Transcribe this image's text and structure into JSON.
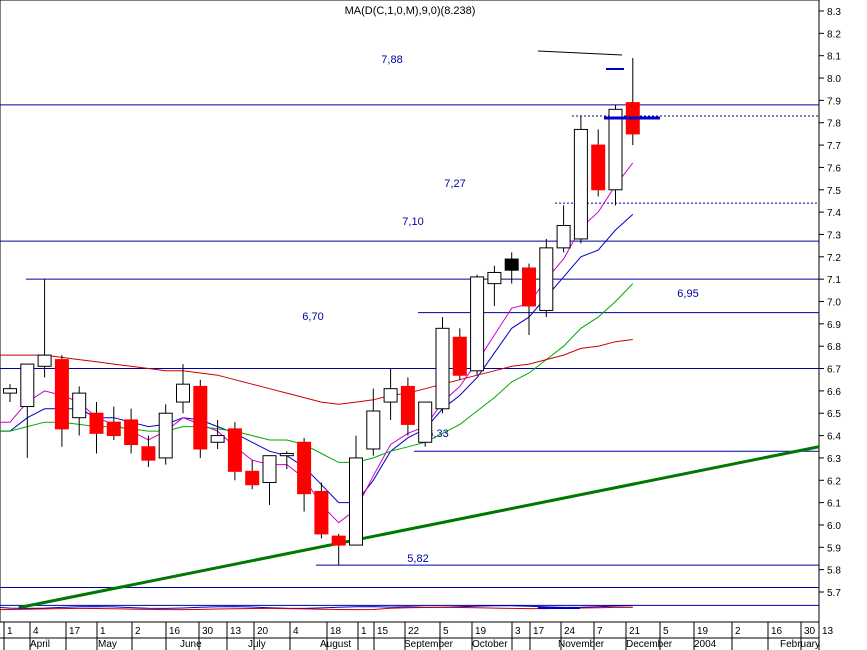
{
  "chart_data": {
    "type": "candlestick",
    "title": "MA(D(C,1,0,M),9,0)(8.238)",
    "ylim": [
      5.62,
      8.33
    ],
    "y_ticks": [
      5.7,
      5.8,
      5.9,
      6.0,
      6.1,
      6.2,
      6.3,
      6.4,
      6.5,
      6.6,
      6.7,
      6.8,
      6.9,
      7.0,
      7.1,
      7.2,
      7.3,
      7.4,
      7.5,
      7.6,
      7.7,
      7.8,
      7.9,
      8.0,
      8.1,
      8.2,
      8.3
    ],
    "x_day_ticks": [
      "1",
      "4",
      "17",
      "1",
      "2",
      "16",
      "30",
      "13",
      "20",
      "4",
      "18",
      "1",
      "15",
      "22",
      "5",
      "19",
      "3",
      "17",
      "24",
      "7",
      "21",
      "5",
      "19",
      "2",
      "16",
      "30",
      "13"
    ],
    "x_month_labels": [
      "April",
      "May",
      "June",
      "July",
      "August",
      "September",
      "October",
      "November",
      "December",
      "2004",
      "February"
    ],
    "candles": [
      {
        "o": 6.59,
        "h": 6.63,
        "l": 6.55,
        "c": 6.61
      },
      {
        "o": 6.53,
        "h": 6.72,
        "l": 6.3,
        "c": 6.72
      },
      {
        "o": 6.71,
        "h": 7.1,
        "l": 6.66,
        "c": 6.76
      },
      {
        "o": 6.74,
        "h": 6.76,
        "l": 6.35,
        "c": 6.43
      },
      {
        "o": 6.48,
        "h": 6.62,
        "l": 6.4,
        "c": 6.59
      },
      {
        "o": 6.5,
        "h": 6.55,
        "l": 6.32,
        "c": 6.41
      },
      {
        "o": 6.46,
        "h": 6.53,
        "l": 6.38,
        "c": 6.4
      },
      {
        "o": 6.47,
        "h": 6.52,
        "l": 6.32,
        "c": 6.36
      },
      {
        "o": 6.35,
        "h": 6.4,
        "l": 6.26,
        "c": 6.29
      },
      {
        "o": 6.3,
        "h": 6.54,
        "l": 6.27,
        "c": 6.5
      },
      {
        "o": 6.55,
        "h": 6.72,
        "l": 6.5,
        "c": 6.63
      },
      {
        "o": 6.62,
        "h": 6.65,
        "l": 6.3,
        "c": 6.34
      },
      {
        "o": 6.37,
        "h": 6.47,
        "l": 6.34,
        "c": 6.4
      },
      {
        "o": 6.43,
        "h": 6.46,
        "l": 6.2,
        "c": 6.24
      },
      {
        "o": 6.24,
        "h": 6.29,
        "l": 6.16,
        "c": 6.18
      },
      {
        "o": 6.19,
        "h": 6.3,
        "l": 6.09,
        "c": 6.31
      },
      {
        "o": 6.31,
        "h": 6.33,
        "l": 6.25,
        "c": 6.32
      },
      {
        "o": 6.37,
        "h": 6.39,
        "l": 6.06,
        "c": 6.14
      },
      {
        "o": 6.15,
        "h": 6.19,
        "l": 5.94,
        "c": 5.96
      },
      {
        "o": 5.95,
        "h": 5.96,
        "l": 5.82,
        "c": 5.91
      },
      {
        "o": 5.91,
        "h": 6.4,
        "l": 5.91,
        "c": 6.3
      },
      {
        "o": 6.34,
        "h": 6.61,
        "l": 6.31,
        "c": 6.51
      },
      {
        "o": 6.55,
        "h": 6.7,
        "l": 6.47,
        "c": 6.61
      },
      {
        "o": 6.62,
        "h": 6.66,
        "l": 6.4,
        "c": 6.45
      },
      {
        "o": 6.37,
        "h": 6.55,
        "l": 6.35,
        "c": 6.55
      },
      {
        "o": 6.52,
        "h": 6.93,
        "l": 6.5,
        "c": 6.88
      },
      {
        "o": 6.84,
        "h": 6.88,
        "l": 6.65,
        "c": 6.67
      },
      {
        "o": 6.69,
        "h": 7.12,
        "l": 6.67,
        "c": 7.11
      },
      {
        "o": 7.08,
        "h": 7.16,
        "l": 6.98,
        "c": 7.13
      },
      {
        "o": 7.14,
        "h": 7.22,
        "l": 7.08,
        "c": 7.19
      },
      {
        "o": 7.15,
        "h": 7.17,
        "l": 6.85,
        "c": 6.98
      },
      {
        "o": 6.96,
        "h": 7.28,
        "l": 6.93,
        "c": 7.24
      },
      {
        "o": 7.24,
        "h": 7.43,
        "l": 7.22,
        "c": 7.34
      },
      {
        "o": 7.28,
        "h": 7.83,
        "l": 7.26,
        "c": 7.77
      },
      {
        "o": 7.7,
        "h": 7.77,
        "l": 7.47,
        "c": 7.5
      },
      {
        "o": 7.5,
        "h": 7.88,
        "l": 7.43,
        "c": 7.86
      },
      {
        "o": 7.89,
        "h": 8.09,
        "l": 7.7,
        "c": 7.75
      }
    ],
    "series": [
      {
        "color": "#0000cc",
        "values": [
          6.42,
          6.48,
          6.52,
          6.52,
          6.52,
          6.48,
          6.48,
          6.46,
          6.44,
          6.45,
          6.48,
          6.47,
          6.44,
          6.41,
          6.37,
          6.33,
          6.31,
          6.26,
          6.18,
          6.1,
          6.1,
          6.2,
          6.33,
          6.39,
          6.43,
          6.52,
          6.58,
          6.66,
          6.77,
          6.88,
          6.93,
          7.02,
          7.11,
          7.2,
          7.23,
          7.32,
          7.39
        ]
      },
      {
        "color": "#cc00cc",
        "values": [
          6.46,
          6.55,
          6.6,
          6.58,
          6.55,
          6.48,
          6.45,
          6.42,
          6.38,
          6.42,
          6.48,
          6.45,
          6.42,
          6.35,
          6.29,
          6.27,
          6.27,
          6.21,
          6.09,
          6.01,
          6.07,
          6.22,
          6.36,
          6.41,
          6.44,
          6.55,
          6.62,
          6.73,
          6.85,
          6.97,
          6.99,
          7.1,
          7.19,
          7.33,
          7.4,
          7.52,
          7.62
        ]
      },
      {
        "color": "#00aa00",
        "values": [
          6.42,
          6.44,
          6.46,
          6.46,
          6.45,
          6.44,
          6.44,
          6.43,
          6.42,
          6.42,
          6.44,
          6.44,
          6.43,
          6.42,
          6.4,
          6.38,
          6.38,
          6.36,
          6.32,
          6.28,
          6.28,
          6.3,
          6.33,
          6.35,
          6.37,
          6.41,
          6.45,
          6.51,
          6.57,
          6.64,
          6.68,
          6.74,
          6.8,
          6.88,
          6.93,
          7.0,
          7.08
        ]
      },
      {
        "color": "#cc0000",
        "values": [
          6.76,
          6.76,
          6.76,
          6.75,
          6.74,
          6.73,
          6.72,
          6.71,
          6.7,
          6.69,
          6.69,
          6.68,
          6.67,
          6.65,
          6.63,
          6.61,
          6.59,
          6.57,
          6.55,
          6.54,
          6.55,
          6.56,
          6.58,
          6.59,
          6.61,
          6.63,
          6.65,
          6.67,
          6.69,
          6.71,
          6.72,
          6.74,
          6.76,
          6.79,
          6.8,
          6.82,
          6.83
        ]
      }
    ],
    "horizontal_levels": [
      {
        "value": 7.88,
        "label": "7,88"
      },
      {
        "value": 7.27,
        "label": "7,27"
      },
      {
        "value": 7.1,
        "label": "7,10"
      },
      {
        "value": 6.95,
        "label": "6,95"
      },
      {
        "value": 6.7,
        "label": "6,70"
      },
      {
        "value": 6.33,
        "label": "6,33"
      },
      {
        "value": 5.82,
        "label": "5,82"
      },
      {
        "value": 5.72,
        "label": ""
      },
      {
        "value": 5.64,
        "label": ""
      }
    ],
    "dashed_levels": [
      7.83,
      7.44
    ],
    "trendline": {
      "from": [
        19,
        5.9
      ],
      "to": [
        45,
        6.35
      ]
    }
  }
}
